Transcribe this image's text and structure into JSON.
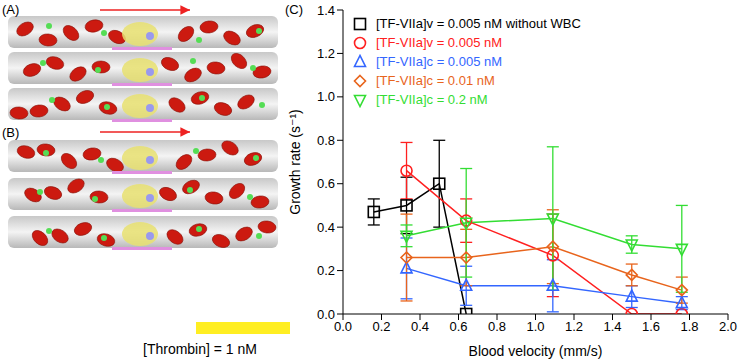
{
  "chart_data": {
    "type": "line",
    "panel_label": "(C)",
    "x_label": "Blood velocity (mm/s)",
    "y_label": "Growth rate (s⁻¹)",
    "xlim": [
      0,
      2
    ],
    "xticks": [
      {
        "value": 0,
        "label": "0.0"
      },
      0.2,
      0.4,
      0.6,
      0.8,
      {
        "value": 1,
        "label": "1.0"
      },
      1.2,
      1.4,
      1.6,
      1.8,
      {
        "value": 2,
        "label": "2.0"
      }
    ],
    "ylim": [
      0,
      1.4
    ],
    "yticks": [
      {
        "value": 0,
        "label": "0.0"
      },
      0.2,
      0.4,
      0.6,
      0.8,
      {
        "value": 1,
        "label": "1.0"
      },
      1.2,
      1.4
    ],
    "grid": false,
    "legend": "upper left",
    "series": [
      {
        "name": "[TF-VIIa]v = 0.005 nM without WBC",
        "color": "#000000",
        "marker": "square",
        "x": [
          0.16,
          0.33,
          0.5,
          0.64
        ],
        "values": [
          0.47,
          0.5,
          0.6,
          0.0
        ],
        "errors": [
          0.06,
          0.13,
          0.2,
          0
        ]
      },
      {
        "name": "[TF-VIIa]v = 0.005 nM",
        "color": "#ff2020",
        "marker": "circle",
        "x": [
          0.33,
          0.64,
          1.09,
          1.5,
          1.76
        ],
        "values": [
          0.66,
          0.43,
          0.27,
          0.0,
          0.0
        ],
        "errors": [
          0.13,
          0.1,
          0.19,
          0,
          0
        ]
      },
      {
        "name": "[TF-VIIa]c = 0.005 nM",
        "color": "#3366ff",
        "marker": "triangle",
        "x": [
          0.33,
          0.64,
          1.09,
          1.5,
          1.76
        ],
        "values": [
          0.21,
          0.13,
          0.13,
          0.08,
          0.05
        ],
        "errors": [
          0.14,
          0.09,
          0.12,
          0.05,
          0.03
        ]
      },
      {
        "name": "[TF-VIIa]c = 0.01 nM",
        "color": "#e8641c",
        "marker": "diamond",
        "x": [
          0.33,
          0.64,
          1.09,
          1.5,
          1.76
        ],
        "values": [
          0.26,
          0.26,
          0.31,
          0.18,
          0.11
        ],
        "errors": [
          0.2,
          0.13,
          0.17,
          0.05,
          0.06
        ]
      },
      {
        "name": "[TF-VIIa]c = 0.2 nM",
        "color": "#33dd33",
        "marker": "triangle-down",
        "x": [
          0.33,
          0.64,
          1.09,
          1.5,
          1.76
        ],
        "values": [
          0.36,
          0.42,
          0.44,
          0.32,
          0.3
        ],
        "errors": [
          0.05,
          0.25,
          0.33,
          0.04,
          0.2
        ]
      }
    ]
  },
  "images": [
    {
      "label": "(A)"
    },
    {
      "label": "(B)"
    }
  ],
  "colorbar_label": "[Thrombin] = 1 nM"
}
